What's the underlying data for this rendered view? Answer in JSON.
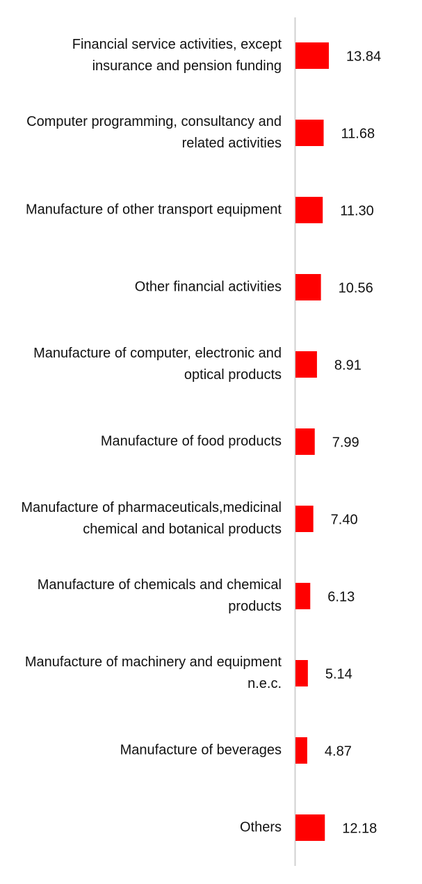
{
  "chart_data": {
    "type": "bar",
    "orientation": "horizontal",
    "categories": [
      "Financial service activities, except insurance and pension funding",
      "Computer programming, consultancy and related activities",
      "Manufacture of other transport equipment",
      "Other financial activities",
      "Manufacture of computer, electronic and optical products",
      "Manufacture of food products",
      "Manufacture of pharmaceuticals,medicinal chemical and botanical products",
      "Manufacture of chemicals and chemical products",
      "Manufacture of machinery and equipment n.e.c.",
      "Manufacture of beverages",
      "Others"
    ],
    "values": [
      13.84,
      11.68,
      11.3,
      10.56,
      8.91,
      7.99,
      7.4,
      6.13,
      5.14,
      4.87,
      12.18
    ],
    "value_labels": [
      "13.84",
      "11.68",
      "11.30",
      "10.56",
      "8.91",
      "7.99",
      "7.40",
      "6.13",
      "5.14",
      "4.87",
      "12.18"
    ],
    "color": "#ff0000"
  }
}
